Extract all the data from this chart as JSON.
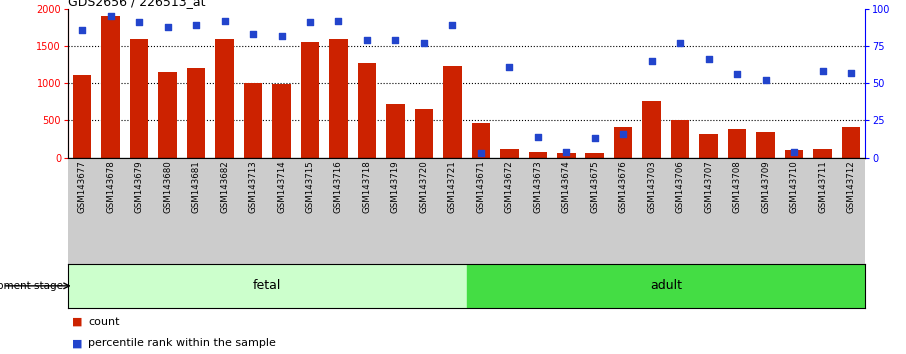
{
  "title": "GDS2656 / 226513_at",
  "samples": [
    "GSM143677",
    "GSM143678",
    "GSM143679",
    "GSM143680",
    "GSM143681",
    "GSM143682",
    "GSM143713",
    "GSM143714",
    "GSM143715",
    "GSM143716",
    "GSM143718",
    "GSM143719",
    "GSM143720",
    "GSM143721",
    "GSM143671",
    "GSM143672",
    "GSM143673",
    "GSM143674",
    "GSM143675",
    "GSM143676",
    "GSM143703",
    "GSM143706",
    "GSM143707",
    "GSM143708",
    "GSM143709",
    "GSM143710",
    "GSM143711",
    "GSM143712"
  ],
  "counts": [
    1110,
    1900,
    1600,
    1145,
    1200,
    1590,
    1000,
    985,
    1560,
    1590,
    1275,
    720,
    650,
    1230,
    470,
    110,
    75,
    65,
    65,
    410,
    760,
    510,
    310,
    380,
    350,
    100,
    120,
    410
  ],
  "percentile_ranks": [
    86,
    95,
    91,
    88,
    89,
    92,
    83,
    82,
    91,
    92,
    79,
    79,
    77,
    89,
    3,
    61,
    14,
    4,
    13,
    16,
    65,
    77,
    66,
    56,
    52,
    4,
    58,
    57
  ],
  "fetal_count": 14,
  "adult_count": 14,
  "bar_color": "#cc2200",
  "dot_color": "#2244cc",
  "fetal_bg_color": "#ccffcc",
  "adult_bg_color": "#44dd44",
  "tick_label_bg": "#cccccc",
  "ylim_left": [
    0,
    2000
  ],
  "ylim_right": [
    0,
    100
  ],
  "yticks_left": [
    0,
    500,
    1000,
    1500,
    2000
  ],
  "yticks_right": [
    0,
    25,
    50,
    75,
    100
  ]
}
